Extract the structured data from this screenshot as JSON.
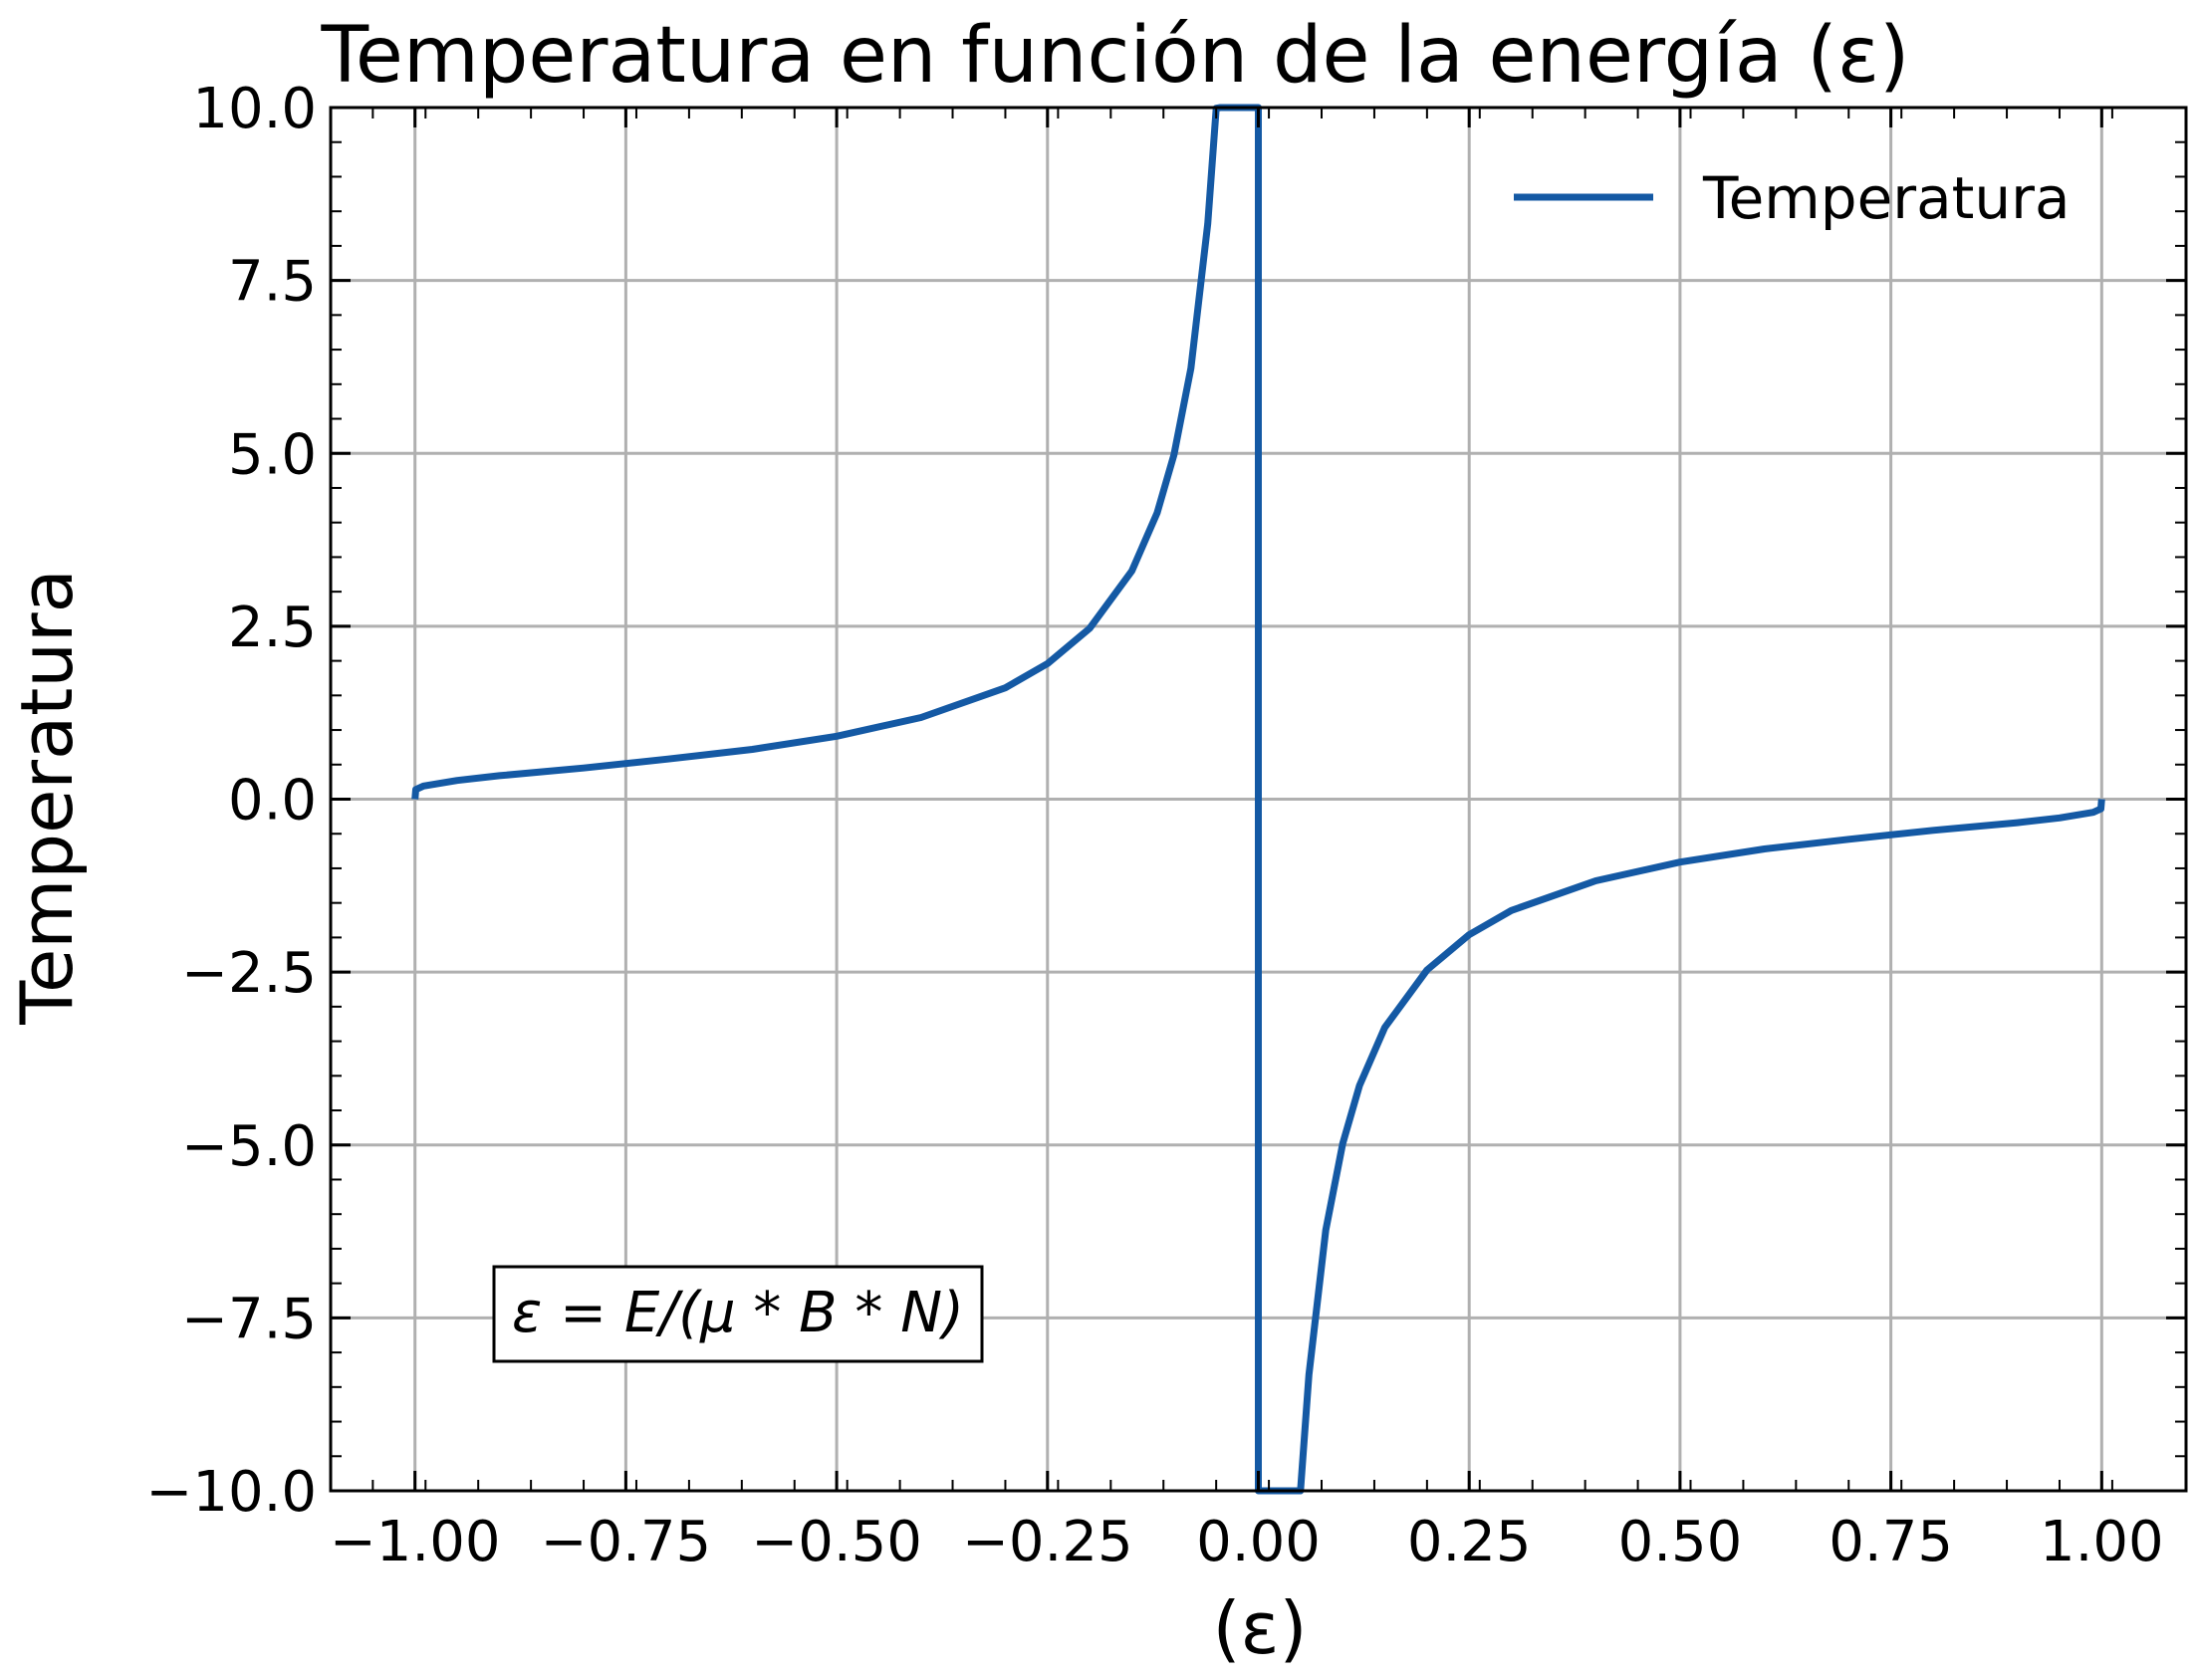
{
  "chart_data": {
    "type": "line",
    "title": "Temperatura en función de la energía (ε)",
    "xlabel": "(ε)",
    "ylabel": "Temperatura",
    "xlim": [
      -1.1,
      1.1
    ],
    "ylim": [
      -10.0,
      10.0
    ],
    "x_ticks": [
      -1.0,
      -0.75,
      -0.5,
      -0.25,
      0.0,
      0.25,
      0.5,
      0.75,
      1.0
    ],
    "x_tick_labels": [
      "−1.00",
      "−0.75",
      "−0.50",
      "−0.25",
      "0.00",
      "0.25",
      "0.50",
      "0.75",
      "1.00"
    ],
    "y_ticks": [
      -10.0,
      -7.5,
      -5.0,
      -2.5,
      0.0,
      2.5,
      5.0,
      7.5,
      10.0
    ],
    "y_tick_labels": [
      "−10.0",
      "−7.5",
      "−5.0",
      "−2.5",
      "0.0",
      "2.5",
      "5.0",
      "7.5",
      "10.0"
    ],
    "grid": true,
    "legend_position": "top-right",
    "annotation": "ε = E/(μ * B * N)",
    "series": [
      {
        "name": "Temperatura",
        "color": "#1459a4",
        "x": [
          -1.0,
          -0.999,
          -0.99,
          -0.95,
          -0.9,
          -0.8,
          -0.7,
          -0.6,
          -0.5,
          -0.4,
          -0.3,
          -0.25,
          -0.2,
          -0.15,
          -0.12,
          -0.1,
          -0.08,
          -0.06,
          -0.05,
          -0.045,
          0.0,
          0.0,
          0.05,
          0.06,
          0.08,
          0.1,
          0.12,
          0.15,
          0.2,
          0.25,
          0.3,
          0.4,
          0.5,
          0.6,
          0.7,
          0.8,
          0.9,
          0.95,
          0.99,
          0.999,
          1.0
        ],
        "y": [
          0.0,
          0.14,
          0.19,
          0.27,
          0.34,
          0.45,
          0.58,
          0.72,
          0.91,
          1.18,
          1.61,
          1.96,
          2.47,
          3.3,
          4.14,
          4.98,
          6.23,
          8.32,
          9.99,
          10.0,
          10.0,
          -10.0,
          -10.0,
          -8.32,
          -6.23,
          -4.98,
          -4.14,
          -3.3,
          -2.47,
          -1.96,
          -1.61,
          -1.18,
          -0.91,
          -0.72,
          -0.58,
          -0.45,
          -0.34,
          -0.27,
          -0.19,
          -0.14,
          0.0
        ]
      }
    ]
  }
}
